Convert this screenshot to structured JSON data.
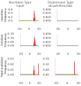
{
  "chart_data": [
    {
      "type": "bar",
      "title": "Nuclease Type\nCas9",
      "ylabel": "Insertion\nfrequency",
      "x": [
        -20,
        -19,
        -18,
        -17,
        -16,
        -15,
        -14,
        -13,
        -12,
        -11,
        -10,
        -9,
        -8,
        -7,
        -6,
        -5,
        -4,
        -3,
        -2,
        -1,
        0,
        1,
        2,
        3,
        4,
        5,
        6,
        7,
        8,
        9,
        10,
        11,
        12,
        13,
        14,
        15,
        16,
        17,
        18,
        19
      ],
      "series": [
        {
          "colors": [
            "#4477bb",
            "#cc4444",
            "#44aa44",
            "#ddaa22",
            "#4477bb",
            "#cc4444",
            "#44aa44",
            "#ddaa22",
            "#4477bb",
            "#cc4444",
            "#44aa44",
            "#ddaa22",
            "#4477bb",
            "#cc4444",
            "#44aa44",
            "#ddaa22",
            "#4477bb",
            "#cc4444",
            "#44aa44",
            "#ddaa22",
            "#4477bb",
            "#cc4444",
            "#44aa44",
            "#ddaa22",
            "#4477bb",
            "#cc4444",
            "#44aa44",
            "#ddaa22",
            "#4477bb",
            "#cc4444",
            "#44aa44",
            "#ddaa22",
            "#4477bb",
            "#cc4444",
            "#44aa44",
            "#ddaa22",
            "#4477bb",
            "#cc4444",
            "#44aa44",
            "#ddaa22"
          ],
          "values": [
            0.036,
            0.036,
            0.036,
            0.036,
            0.036,
            0.036,
            0.036,
            0.036,
            0.036,
            0.036,
            0.036,
            0.036,
            0.036,
            0.036,
            0.036,
            0.036,
            0.036,
            0.036,
            0.036,
            0.036,
            0.036,
            0.036,
            0.036,
            0.036,
            0.036,
            0.036,
            0.036,
            0.036,
            0.036,
            0.036,
            0.036,
            0.036,
            0.036,
            0.036,
            0.036,
            0.036,
            0.036,
            0.036,
            0.036,
            0.036
          ]
        },
        {
          "color": "#cc0000",
          "values": [
            null,
            null,
            null,
            null,
            null,
            null,
            null,
            null,
            null,
            null,
            null,
            null,
            null,
            null,
            null,
            null,
            null,
            null,
            null,
            null,
            null,
            null,
            null,
            null,
            null,
            null,
            null,
            null,
            null,
            0.15,
            0.55,
            0.38,
            0.18,
            null,
            null,
            null,
            null,
            null,
            null,
            null
          ]
        }
      ],
      "xlim": [
        -21,
        21
      ],
      "xticks": [
        -20,
        0,
        20
      ],
      "ylim": [
        0,
        0.6
      ],
      "yticks": [
        {
          "value": 0,
          "label": "0.0"
        },
        0.2,
        0.4,
        0.6
      ],
      "grid": false
    },
    {
      "type": "bar",
      "title": "Deaminase Type\ndCas9-PmCDA1",
      "x": [
        -20,
        -19,
        -18,
        -17,
        -16,
        -15,
        -14,
        -13,
        -12,
        -11,
        -10,
        -9,
        -8,
        -7,
        -6,
        -5,
        -4,
        -3,
        -2,
        -1,
        0,
        1,
        2,
        3,
        4,
        5,
        6,
        7,
        8,
        9,
        10,
        11,
        12,
        13,
        14,
        15,
        16,
        17,
        18,
        19
      ],
      "series": [
        {
          "colors": [
            "#4477bb",
            "#cc4444",
            "#44aa44",
            "#ddaa22",
            "#4477bb",
            "#cc4444",
            "#44aa44",
            "#ddaa22",
            "#4477bb",
            "#cc4444",
            "#44aa44",
            "#ddaa22",
            "#4477bb",
            "#cc4444",
            "#44aa44",
            "#ddaa22",
            "#4477bb",
            "#cc4444",
            "#44aa44",
            "#ddaa22",
            "#4477bb",
            "#cc4444",
            "#44aa44",
            "#ddaa22",
            "#4477bb",
            "#cc4444",
            "#44aa44",
            "#ddaa22",
            "#4477bb",
            "#cc4444",
            "#44aa44",
            "#ddaa22",
            "#4477bb",
            "#cc4444",
            "#44aa44",
            "#ddaa22",
            "#4477bb",
            "#cc4444",
            "#44aa44",
            "#ddaa22"
          ],
          "values": [
            0.00036,
            0.00036,
            0.00036,
            0.00036,
            0.00036,
            0.00036,
            0.00036,
            0.00036,
            0.00036,
            0.00036,
            0.00036,
            0.00036,
            0.00036,
            0.00036,
            0.00036,
            0.00036,
            0.00036,
            0.00036,
            0.00036,
            0.00036,
            0.00036,
            0.00036,
            0.00036,
            0.00036,
            0.00036,
            0.00036,
            0.00036,
            0.00036,
            0.00036,
            0.00036,
            0.00036,
            0.00036,
            0.00036,
            0.00036,
            0.00036,
            0.00036,
            0.00036,
            0.00036,
            0.00036,
            0.00036
          ]
        }
      ],
      "xlim": [
        -21,
        21
      ],
      "xticks": [
        -20,
        0,
        20
      ],
      "ylim": [
        0,
        0.006
      ],
      "yticks": [
        {
          "value": 0,
          "label": "0.000"
        },
        0.002,
        0.004,
        0.006
      ],
      "grid": false
    },
    {
      "type": "bar",
      "ylabel": "Deletion\nfrequency",
      "x": [
        -20,
        -19,
        -18,
        -17,
        -16,
        -15,
        -14,
        -13,
        -12,
        -11,
        -10,
        -9,
        -8,
        -7,
        -6,
        -5,
        -4,
        -3,
        -2,
        -1,
        0,
        1,
        2,
        3,
        4,
        5,
        6,
        7,
        8,
        9,
        10,
        11,
        12,
        13,
        14,
        15,
        16,
        17,
        18,
        19
      ],
      "series": [
        {
          "colors": [
            "#4477bb",
            "#cc4444",
            "#44aa44",
            "#ddaa22",
            "#4477bb",
            "#cc4444",
            "#44aa44",
            "#ddaa22",
            "#4477bb",
            "#cc4444",
            "#44aa44",
            "#ddaa22",
            "#4477bb",
            "#cc4444",
            "#44aa44",
            "#ddaa22",
            "#4477bb",
            "#cc4444",
            "#44aa44",
            "#ddaa22",
            "#4477bb",
            "#cc4444",
            "#44aa44",
            "#ddaa22",
            "#4477bb",
            "#cc4444",
            "#44aa44",
            "#ddaa22",
            "#4477bb",
            "#cc4444",
            "#44aa44",
            "#ddaa22",
            "#4477bb",
            "#cc4444",
            "#44aa44",
            "#ddaa22",
            "#4477bb",
            "#cc4444",
            "#44aa44",
            "#ddaa22"
          ],
          "values": [
            0.009,
            0.009,
            0.009,
            0.009,
            0.009,
            0.009,
            0.009,
            0.009,
            0.009,
            0.009,
            0.009,
            0.009,
            0.009,
            0.009,
            0.009,
            0.009,
            0.009,
            0.009,
            0.009,
            0.009,
            0.009,
            0.009,
            0.009,
            0.009,
            0.009,
            0.009,
            0.009,
            0.009,
            0.009,
            0.009,
            0.009,
            0.009,
            0.009,
            0.009,
            0.009,
            0.009,
            0.009,
            0.009,
            0.009,
            0.009
          ]
        },
        {
          "color": "#cc0000",
          "values": [
            null,
            null,
            null,
            null,
            null,
            null,
            null,
            null,
            null,
            null,
            null,
            null,
            null,
            null,
            null,
            null,
            null,
            null,
            null,
            null,
            null,
            null,
            null,
            null,
            null,
            null,
            null,
            null,
            0.02,
            0.05,
            0.12,
            0.09,
            0.05,
            0.02,
            null,
            null,
            null,
            null,
            null,
            null
          ]
        }
      ],
      "xlim": [
        -21,
        21
      ],
      "xticks": [
        -20,
        0,
        20
      ],
      "ylim": [
        0,
        0.15
      ],
      "yticks": [
        {
          "value": 0,
          "label": "0.00"
        },
        0.05,
        {
          "value": 0.1,
          "label": "0.10"
        },
        0.15
      ],
      "grid": false
    },
    {
      "type": "bar",
      "x": [
        -20,
        -19,
        -18,
        -17,
        -16,
        -15,
        -14,
        -13,
        -12,
        -11,
        -10,
        -9,
        -8,
        -7,
        -6,
        -5,
        -4,
        -3,
        -2,
        -1,
        0,
        1,
        2,
        3,
        4,
        5,
        6,
        7,
        8,
        9,
        10,
        11,
        12,
        13,
        14,
        15,
        16,
        17,
        18,
        19
      ],
      "series": [
        {
          "colors": [
            "#4477bb",
            "#cc4444",
            "#44aa44",
            "#ddaa22",
            "#4477bb",
            "#cc4444",
            "#44aa44",
            "#ddaa22",
            "#4477bb",
            "#cc4444",
            "#44aa44",
            "#ddaa22",
            "#4477bb",
            "#cc4444",
            "#44aa44",
            "#ddaa22",
            "#4477bb",
            "#cc4444",
            "#44aa44",
            "#ddaa22",
            "#4477bb",
            "#cc4444",
            "#44aa44",
            "#ddaa22",
            "#4477bb",
            "#cc4444",
            "#44aa44",
            "#ddaa22",
            "#4477bb",
            "#cc4444",
            "#44aa44",
            "#ddaa22",
            "#4477bb",
            "#cc4444",
            "#44aa44",
            "#ddaa22",
            "#4477bb",
            "#cc4444",
            "#44aa44",
            "#ddaa22"
          ],
          "values": [
            0.00036,
            0.00036,
            0.00036,
            0.00036,
            0.00036,
            0.00036,
            0.00036,
            0.00036,
            0.00036,
            0.00036,
            0.00036,
            0.00036,
            0.00036,
            0.00036,
            0.00036,
            0.00036,
            0.00036,
            0.00036,
            0.00036,
            0.00036,
            0.00036,
            0.00036,
            0.00036,
            0.00036,
            0.00036,
            0.00036,
            0.00036,
            0.00036,
            0.00036,
            0.00036,
            0.00036,
            0.00036,
            0.00036,
            0.00036,
            0.00036,
            0.00036,
            0.00036,
            0.00036,
            0.00036,
            0.00036
          ]
        }
      ],
      "xlim": [
        -21,
        21
      ],
      "xticks": [
        -20,
        0,
        20
      ],
      "ylim": [
        0,
        0.006
      ],
      "yticks": [
        {
          "value": 0,
          "label": "0.000"
        },
        0.002,
        0.004,
        0.006
      ],
      "grid": false
    },
    {
      "type": "bar",
      "ylabel": "Point mutation\nfrequency",
      "x": [
        -20,
        -19,
        -18,
        -17,
        -16,
        -15,
        -14,
        -13,
        -12,
        -11,
        -10,
        -9,
        -8,
        -7,
        -6,
        -5,
        -4,
        -3,
        -2,
        -1,
        0,
        1,
        2,
        3,
        4,
        5,
        6,
        7,
        8,
        9,
        10,
        11,
        12,
        13,
        14,
        15,
        16,
        17,
        18,
        19
      ],
      "series": [
        {
          "colors": [
            "#4477bb",
            "#cc4444",
            "#44aa44",
            "#ddaa22",
            "#4477bb",
            "#cc4444",
            "#44aa44",
            "#ddaa22",
            "#4477bb",
            "#cc4444",
            "#44aa44",
            "#ddaa22",
            "#4477bb",
            "#cc4444",
            "#44aa44",
            "#ddaa22",
            "#4477bb",
            "#cc4444",
            "#44aa44",
            "#ddaa22",
            "#4477bb",
            "#cc4444",
            "#44aa44",
            "#ddaa22",
            "#4477bb",
            "#cc4444",
            "#44aa44",
            "#ddaa22",
            "#4477bb",
            "#cc4444",
            "#44aa44",
            "#ddaa22",
            "#4477bb",
            "#cc4444",
            "#44aa44",
            "#ddaa22",
            "#4477bb",
            "#cc4444",
            "#44aa44",
            "#ddaa22"
          ],
          "values": [
            0.0018,
            0.0018,
            0.0018,
            0.0018,
            0.0018,
            0.0018,
            0.0018,
            0.0018,
            0.0018,
            0.0018,
            0.0018,
            0.0018,
            0.0018,
            0.0018,
            0.0018,
            0.0018,
            0.0018,
            0.0018,
            0.0018,
            0.0018,
            0.0018,
            0.0018,
            0.0018,
            0.0018,
            0.0018,
            0.0018,
            0.0018,
            0.0018,
            0.0018,
            0.0018,
            0.0018,
            0.0018,
            0.0018,
            0.0018,
            0.0018,
            0.0018,
            0.0018,
            0.0018,
            0.0018,
            0.0018
          ]
        },
        {
          "color": "#cc0000",
          "values": [
            null,
            null,
            null,
            null,
            null,
            null,
            null,
            null,
            null,
            null,
            null,
            null,
            null,
            null,
            null,
            null,
            null,
            null,
            null,
            null,
            null,
            null,
            null,
            null,
            null,
            null,
            null,
            null,
            0.008,
            0.018,
            0.01,
            null,
            null,
            null,
            null,
            null,
            null,
            null,
            null,
            0.022
          ]
        }
      ],
      "xlim": [
        -21,
        21
      ],
      "xticks": [
        -20,
        0,
        20
      ],
      "ylim": [
        0,
        0.03
      ],
      "yticks": [
        {
          "value": 0,
          "label": "0.00"
        },
        0.01,
        0.02,
        0.03
      ],
      "grid": false
    },
    {
      "type": "bar",
      "x": [
        -20,
        -19,
        -18,
        -17,
        -16,
        -15,
        -14,
        -13,
        -12,
        -11,
        -10,
        -9,
        -8,
        -7,
        -6,
        -5,
        -4,
        -3,
        -2,
        -1,
        0,
        1,
        2,
        3,
        4,
        5,
        6,
        7,
        8,
        9,
        10,
        11,
        12,
        13,
        14,
        15,
        16,
        17,
        18,
        19
      ],
      "series": [
        {
          "colors": [
            "#4477bb",
            "#cc4444",
            "#44aa44",
            "#ddaa22",
            "#4477bb",
            "#cc4444",
            "#44aa44",
            "#ddaa22",
            "#4477bb",
            "#cc4444",
            "#44aa44",
            "#ddaa22",
            "#4477bb",
            "#cc4444",
            "#44aa44",
            "#ddaa22",
            "#4477bb",
            "#cc4444",
            "#44aa44",
            "#ddaa22",
            "#4477bb",
            "#cc4444",
            "#44aa44",
            "#ddaa22",
            "#4477bb",
            "#cc4444",
            "#44aa44",
            "#ddaa22",
            "#4477bb",
            "#cc4444",
            "#44aa44",
            "#ddaa22",
            "#4477bb",
            "#cc4444",
            "#44aa44",
            "#ddaa22",
            "#4477bb",
            "#cc4444",
            "#44aa44",
            "#ddaa22"
          ],
          "values": [
            0.009,
            0.009,
            0.009,
            0.009,
            0.009,
            0.009,
            0.009,
            0.009,
            0.009,
            0.009,
            0.009,
            0.009,
            0.009,
            0.009,
            0.009,
            0.009,
            0.009,
            0.009,
            0.009,
            0.009,
            0.009,
            0.009,
            0.009,
            0.009,
            0.009,
            0.009,
            0.009,
            0.009,
            0.009,
            0.009,
            0.009,
            0.009,
            0.009,
            0.009,
            0.009,
            0.009,
            0.009,
            0.009,
            0.009,
            0.009
          ]
        },
        {
          "color": "#cc0000",
          "values": [
            null,
            null,
            null,
            null,
            null,
            null,
            null,
            null,
            null,
            null,
            null,
            null,
            null,
            null,
            null,
            null,
            null,
            null,
            null,
            null,
            null,
            null,
            null,
            null,
            null,
            null,
            null,
            null,
            null,
            null,
            null,
            null,
            null,
            0.13,
            null,
            null,
            null,
            null,
            null,
            null
          ]
        }
      ],
      "xlim": [
        -21,
        21
      ],
      "xticks": [
        -20,
        0,
        20
      ],
      "ylim": [
        0,
        0.15
      ],
      "yticks": [
        {
          "value": 0,
          "label": "0.00"
        },
        0.05,
        {
          "value": 0.1,
          "label": "0.10"
        },
        0.15
      ],
      "grid": false
    }
  ]
}
